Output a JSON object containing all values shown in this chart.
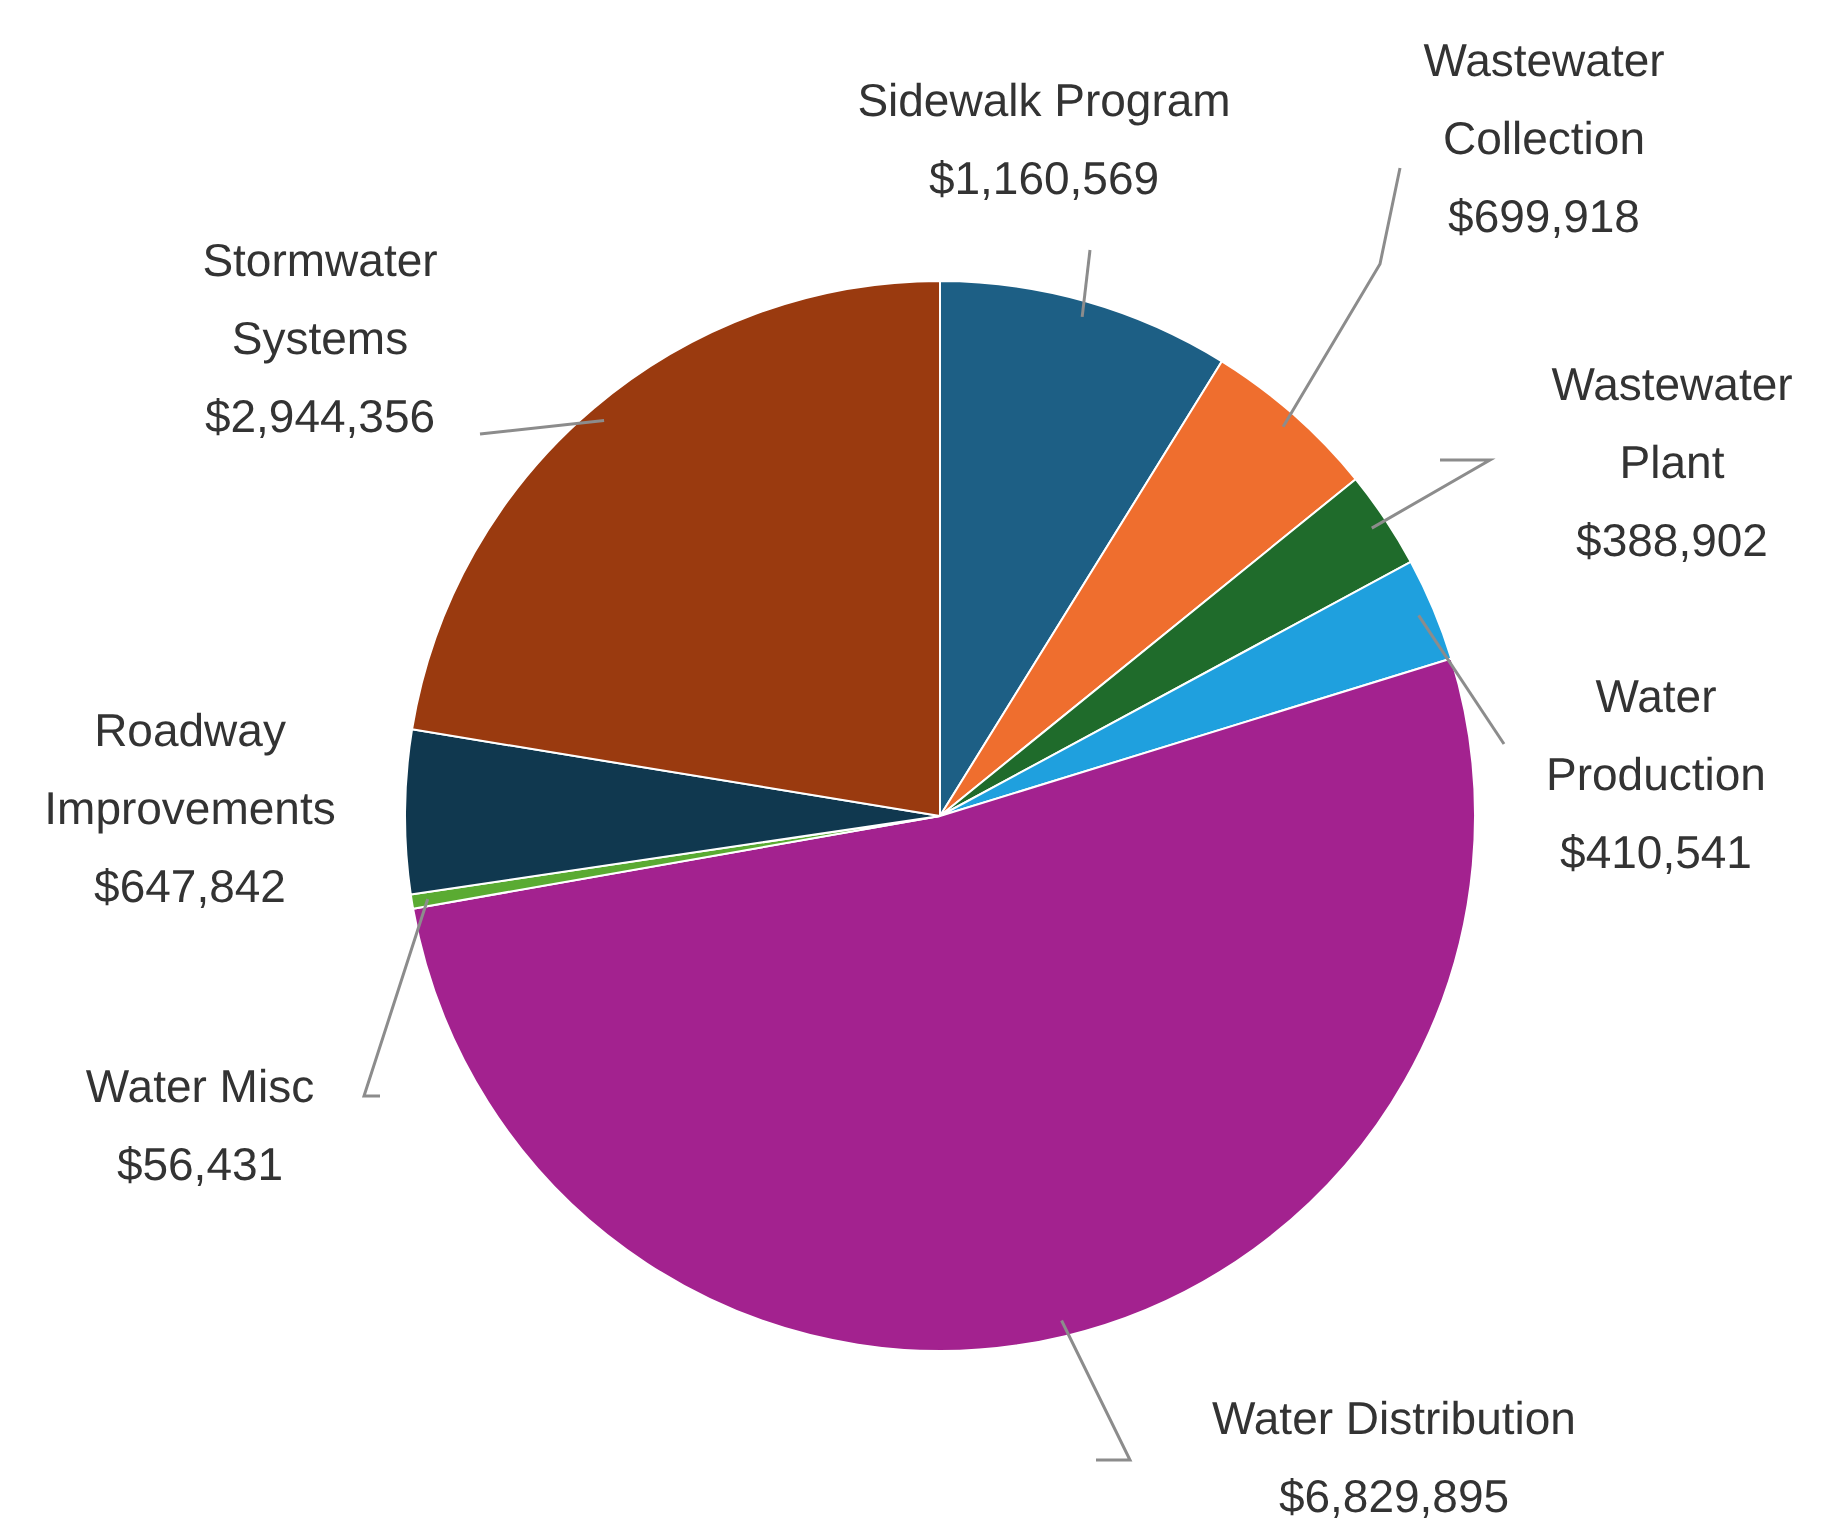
{
  "chart_data": {
    "type": "pie",
    "categories": [
      "Sidewalk Program",
      "Wastewater Collection",
      "Wastewater Plant",
      "Water Production",
      "Water Distribution",
      "Water Misc",
      "Roadway Improvements",
      "Stormwater Systems"
    ],
    "values": [
      1160569,
      699918,
      388902,
      410541,
      6829895,
      56431,
      647842,
      2944356
    ],
    "value_labels": [
      "$1,160,569",
      "$699,918",
      "$388,902",
      "$410,541",
      "$6,829,895",
      "$56,431",
      "$647,842",
      "$2,944,356"
    ],
    "colors": [
      "#1d5f85",
      "#ef6e2e",
      "#1f6b2b",
      "#1fa0de",
      "#a3228f",
      "#5aab32",
      "#10384f",
      "#9a3a0f"
    ],
    "legend": false
  }
}
